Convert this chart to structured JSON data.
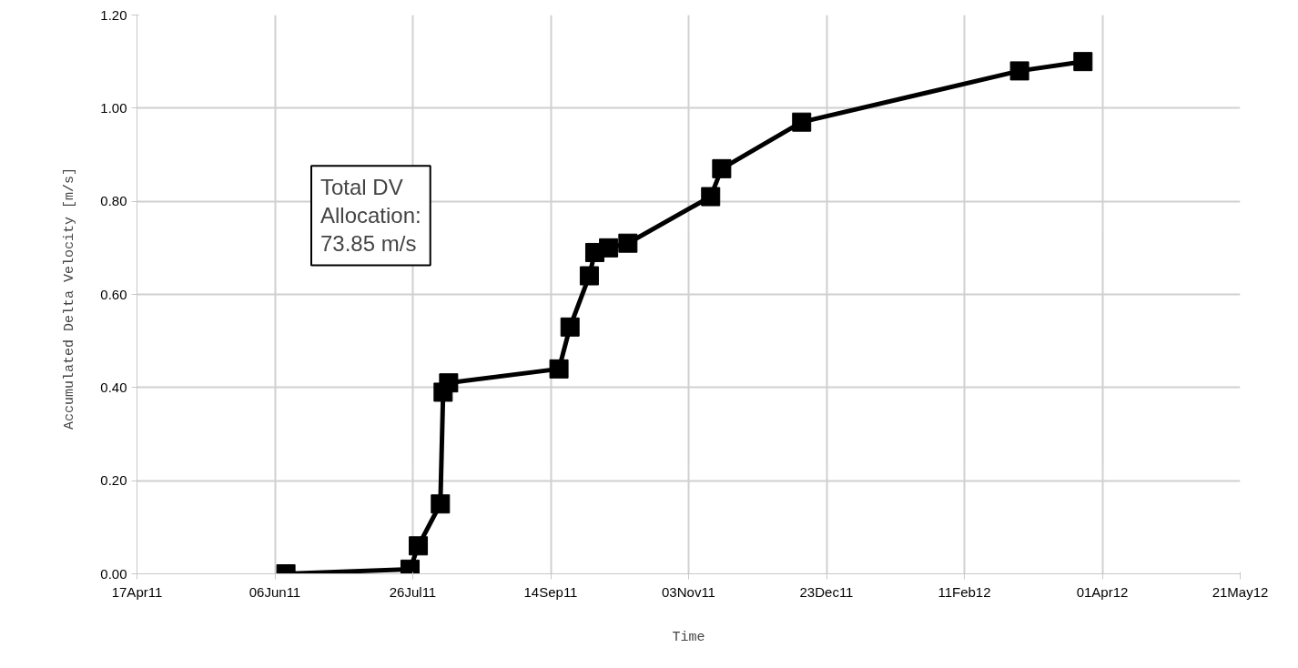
{
  "chart_data": {
    "type": "line",
    "xlabel": "Time",
    "ylabel": "Accumulated  Delta Velocity [m/s]",
    "x": [
      "2011-06-10",
      "2011-07-25",
      "2011-07-28",
      "2011-08-05",
      "2011-08-06",
      "2011-08-08",
      "2011-09-17",
      "2011-09-21",
      "2011-09-28",
      "2011-09-30",
      "2011-10-05",
      "2011-10-12",
      "2011-11-11",
      "2011-11-15",
      "2011-12-14",
      "2012-03-02",
      "2012-03-25"
    ],
    "series": [
      {
        "color": "#000000",
        "values": [
          0.0,
          0.01,
          0.06,
          0.15,
          0.39,
          0.41,
          0.44,
          0.53,
          0.64,
          0.69,
          0.7,
          0.71,
          0.81,
          0.87,
          0.97,
          1.08,
          1.1
        ]
      }
    ],
    "xlim": [
      "2011-04-17",
      "2012-05-21"
    ],
    "xticks": [
      {
        "value": "2011-04-17",
        "label": "17Apr11"
      },
      {
        "value": "2011-06-06",
        "label": "06Jun11"
      },
      {
        "value": "2011-07-26",
        "label": "26Jul11"
      },
      {
        "value": "2011-09-14",
        "label": "14Sep11"
      },
      {
        "value": "2011-11-03",
        "label": "03Nov11"
      },
      {
        "value": "2011-12-23",
        "label": "23Dec11"
      },
      {
        "value": "2012-02-11",
        "label": "11Feb12"
      },
      {
        "value": "2012-04-01",
        "label": "01Apr12"
      },
      {
        "value": "2012-05-21",
        "label": "21May12"
      }
    ],
    "ylim": [
      0,
      1.2
    ],
    "yticks": [
      {
        "value": 0,
        "label": "0.00"
      },
      {
        "value": 0.2,
        "label": "0.20"
      },
      {
        "value": 0.4,
        "label": "0.40"
      },
      {
        "value": 0.6,
        "label": "0.60"
      },
      {
        "value": 0.8,
        "label": "0.80"
      },
      {
        "value": 1.0,
        "label": "1.00"
      },
      {
        "value": 1.2,
        "label": "1.20"
      }
    ],
    "grid": true,
    "marker": "square",
    "line_style": "solid",
    "annotations": [
      "Total DV\nAllocation:\n73.85 m/s"
    ]
  }
}
